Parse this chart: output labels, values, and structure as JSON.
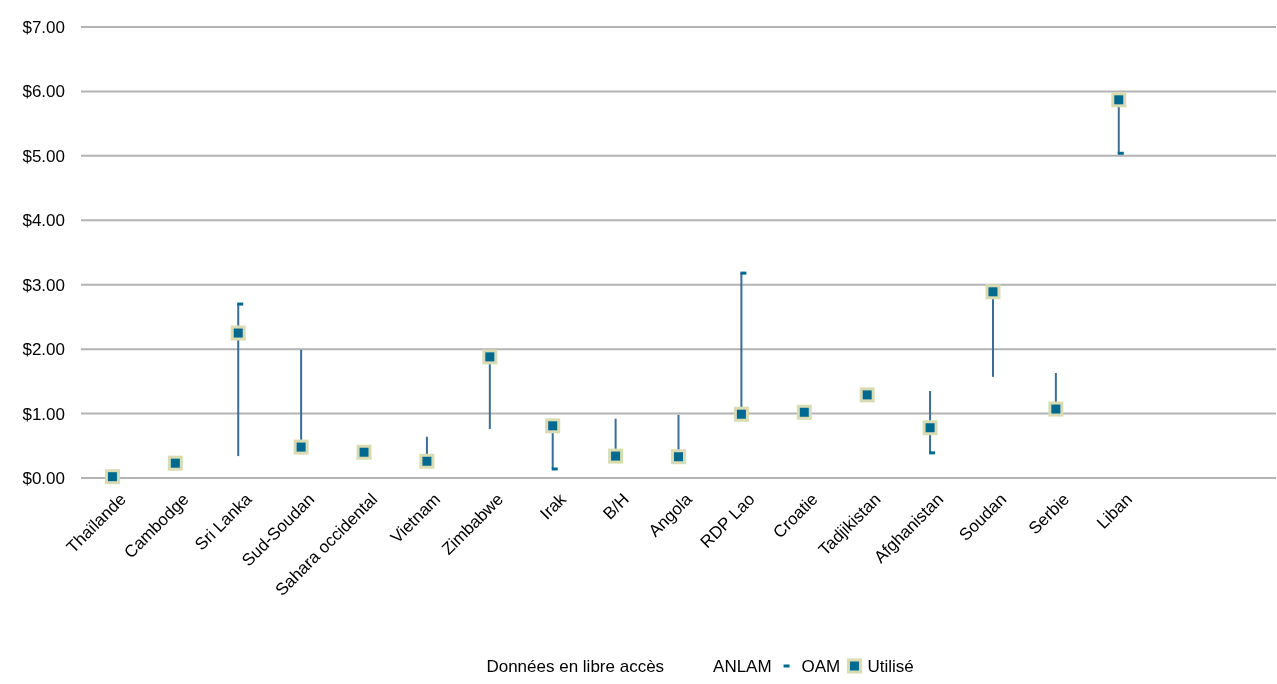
{
  "chart_data": {
    "type": "scatter",
    "categories": [
      "Thaïlande",
      "Cambodge",
      "Sri Lanka",
      "Sud-Soudan",
      "Sahara occidental",
      "Vietnam",
      "Zimbabwe",
      "Irak",
      "B/H",
      "Angola",
      "RDP Lao",
      "Croatie",
      "Tadjikistan",
      "Afghanistan",
      "Soudan",
      "Serbie",
      "Liban",
      null,
      null
    ],
    "series": [
      {
        "name": "OAM",
        "color": "#00698f",
        "marker": "square",
        "values": [
          null,
          null,
          2.7,
          null,
          null,
          null,
          null,
          0.14,
          null,
          null,
          3.18,
          null,
          null,
          0.39,
          null,
          null,
          5.04,
          null,
          null
        ]
      },
      {
        "name": "Utilisé",
        "color": "#00698f",
        "marker": "square",
        "values": [
          0.02,
          0.23,
          2.25,
          0.48,
          0.4,
          0.26,
          1.88,
          0.81,
          0.34,
          0.33,
          0.99,
          1.02,
          1.29,
          0.78,
          2.89,
          1.07,
          5.87,
          null,
          null
        ],
        "errors": [
          null,
          null,
          [
            0.34,
            2.7
          ],
          [
            0.37,
            1.99
          ],
          null,
          [
            0.26,
            0.64
          ],
          [
            0.76,
            1.88
          ],
          [
            0.14,
            0.81
          ],
          [
            0.34,
            0.92
          ],
          [
            0.33,
            0.98
          ],
          [
            0.99,
            3.18
          ],
          null,
          null,
          [
            0.39,
            1.35
          ],
          [
            1.57,
            2.89
          ],
          [
            1.07,
            1.63
          ],
          [
            5.04,
            5.87
          ],
          null,
          null
        ]
      }
    ],
    "ylim": [
      0,
      7
    ],
    "yticks": [
      {
        "value": 0,
        "label": "$0.00"
      },
      {
        "value": 1,
        "label": "$1.00"
      },
      {
        "value": 2,
        "label": "$2.00"
      },
      {
        "value": 3,
        "label": "$3.00"
      },
      {
        "value": 4,
        "label": "$4.00"
      },
      {
        "value": 5,
        "label": "$5.00"
      },
      {
        "value": 6,
        "label": "$6.00"
      },
      {
        "value": 7,
        "label": "$7.00"
      }
    ],
    "annotations": [
      "Données en libre accès",
      "ANLAM"
    ],
    "grid": "y",
    "legend": "bottom"
  }
}
